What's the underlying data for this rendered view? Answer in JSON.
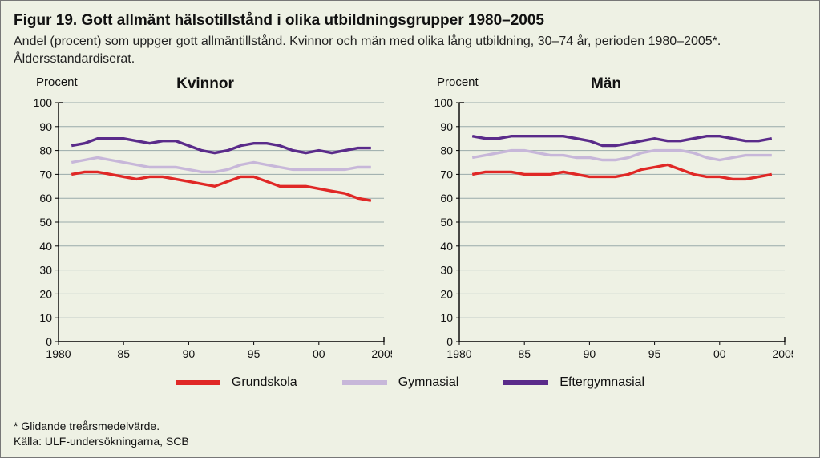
{
  "title": "Figur 19. Gott allmänt hälsotillstånd i olika utbildningsgrupper 1980–2005",
  "subtitle": "Andel (procent) som uppger gott allmäntillstånd. Kvinnor och män med olika lång utbildning, 30–74 år, perioden 1980–2005*. Åldersstandardiserat.",
  "y_label": "Procent",
  "footnote1": "* Glidande treårsmedelvärde.",
  "footnote2": "Källa: ULF-undersökningarna, SCB",
  "colors": {
    "background": "#eef1e4",
    "axis": "#000000",
    "grid": "#99aaaa",
    "grundskola": "#e02826",
    "gymnasial": "#c7b7d9",
    "eftergymnasial": "#5a2b8a"
  },
  "legend": {
    "grundskola": "Grundskola",
    "gymnasial": "Gymnasial",
    "eftergymnasial": "Eftergymnasial"
  },
  "chart_style": {
    "type": "line",
    "line_width": 3.4,
    "label_fontsize": 15,
    "tick_fontsize": 14,
    "title_fontsize": 19
  },
  "axes": {
    "xlim": [
      1980,
      2005
    ],
    "ylim": [
      0,
      100
    ],
    "ytick_step": 10,
    "yticks": [
      0,
      10,
      20,
      30,
      40,
      50,
      60,
      70,
      80,
      90,
      100
    ],
    "xticks": [
      1980,
      1985,
      1990,
      1995,
      2000,
      2005
    ],
    "xtick_labels": [
      "1980",
      "85",
      "90",
      "95",
      "00",
      "2005"
    ]
  },
  "panels": [
    {
      "key": "kvinnor",
      "title": "Kvinnor",
      "series": {
        "eftergymnasial": {
          "x": [
            1981,
            1982,
            1983,
            1984,
            1985,
            1986,
            1987,
            1988,
            1989,
            1990,
            1991,
            1992,
            1993,
            1994,
            1995,
            1996,
            1997,
            1998,
            1999,
            2000,
            2001,
            2002,
            2003,
            2004
          ],
          "y": [
            82,
            83,
            85,
            85,
            85,
            84,
            83,
            84,
            84,
            82,
            80,
            79,
            80,
            82,
            83,
            83,
            82,
            80,
            79,
            80,
            79,
            80,
            81,
            81
          ]
        },
        "gymnasial": {
          "x": [
            1981,
            1982,
            1983,
            1984,
            1985,
            1986,
            1987,
            1988,
            1989,
            1990,
            1991,
            1992,
            1993,
            1994,
            1995,
            1996,
            1997,
            1998,
            1999,
            2000,
            2001,
            2002,
            2003,
            2004
          ],
          "y": [
            75,
            76,
            77,
            76,
            75,
            74,
            73,
            73,
            73,
            72,
            71,
            71,
            72,
            74,
            75,
            74,
            73,
            72,
            72,
            72,
            72,
            72,
            73,
            73
          ]
        },
        "grundskola": {
          "x": [
            1981,
            1982,
            1983,
            1984,
            1985,
            1986,
            1987,
            1988,
            1989,
            1990,
            1991,
            1992,
            1993,
            1994,
            1995,
            1996,
            1997,
            1998,
            1999,
            2000,
            2001,
            2002,
            2003,
            2004
          ],
          "y": [
            70,
            71,
            71,
            70,
            69,
            68,
            69,
            69,
            68,
            67,
            66,
            65,
            67,
            69,
            69,
            67,
            65,
            65,
            65,
            64,
            63,
            62,
            60,
            59
          ]
        }
      }
    },
    {
      "key": "man",
      "title": "Män",
      "series": {
        "eftergymnasial": {
          "x": [
            1981,
            1982,
            1983,
            1984,
            1985,
            1986,
            1987,
            1988,
            1989,
            1990,
            1991,
            1992,
            1993,
            1994,
            1995,
            1996,
            1997,
            1998,
            1999,
            2000,
            2001,
            2002,
            2003,
            2004
          ],
          "y": [
            86,
            85,
            85,
            86,
            86,
            86,
            86,
            86,
            85,
            84,
            82,
            82,
            83,
            84,
            85,
            84,
            84,
            85,
            86,
            86,
            85,
            84,
            84,
            85
          ]
        },
        "gymnasial": {
          "x": [
            1981,
            1982,
            1983,
            1984,
            1985,
            1986,
            1987,
            1988,
            1989,
            1990,
            1991,
            1992,
            1993,
            1994,
            1995,
            1996,
            1997,
            1998,
            1999,
            2000,
            2001,
            2002,
            2003,
            2004
          ],
          "y": [
            77,
            78,
            79,
            80,
            80,
            79,
            78,
            78,
            77,
            77,
            76,
            76,
            77,
            79,
            80,
            80,
            80,
            79,
            77,
            76,
            77,
            78,
            78,
            78
          ]
        },
        "grundskola": {
          "x": [
            1981,
            1982,
            1983,
            1984,
            1985,
            1986,
            1987,
            1988,
            1989,
            1990,
            1991,
            1992,
            1993,
            1994,
            1995,
            1996,
            1997,
            1998,
            1999,
            2000,
            2001,
            2002,
            2003,
            2004
          ],
          "y": [
            70,
            71,
            71,
            71,
            70,
            70,
            70,
            71,
            70,
            69,
            69,
            69,
            70,
            72,
            73,
            74,
            72,
            70,
            69,
            69,
            68,
            68,
            69,
            70
          ]
        }
      }
    }
  ]
}
